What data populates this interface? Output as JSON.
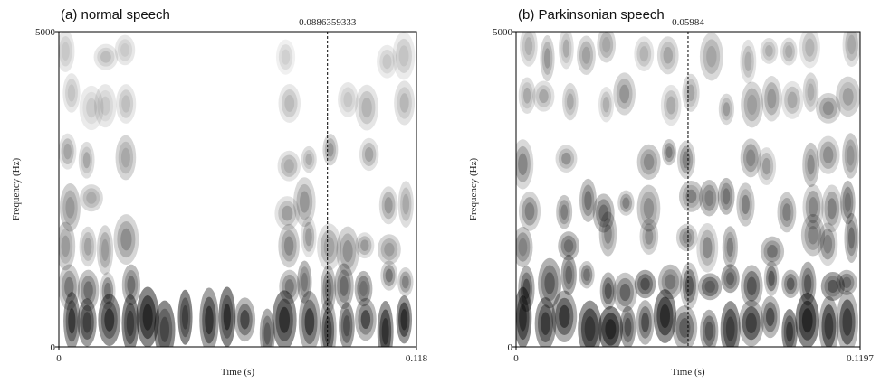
{
  "chart_data": [
    {
      "type": "spectrogram",
      "title": "(a) normal speech",
      "x_label": "Time (s)",
      "y_label": "Frequency (Hz)",
      "xlim": [
        0,
        0.118
      ],
      "xticks": [
        0,
        0.118
      ],
      "ylim": [
        0,
        5000
      ],
      "yticks": [
        0,
        5000
      ],
      "cursor": 0.0886359333
    },
    {
      "type": "spectrogram",
      "title": "(b) Parkinsonian speech",
      "x_label": "Time (s)",
      "y_label": "Frequency (Hz)",
      "xlim": [
        0,
        0.1197
      ],
      "xticks": [
        0,
        0.1197
      ],
      "ylim": [
        0,
        5000
      ],
      "yticks": [
        0,
        5000
      ],
      "cursor": 0.05984
    }
  ]
}
